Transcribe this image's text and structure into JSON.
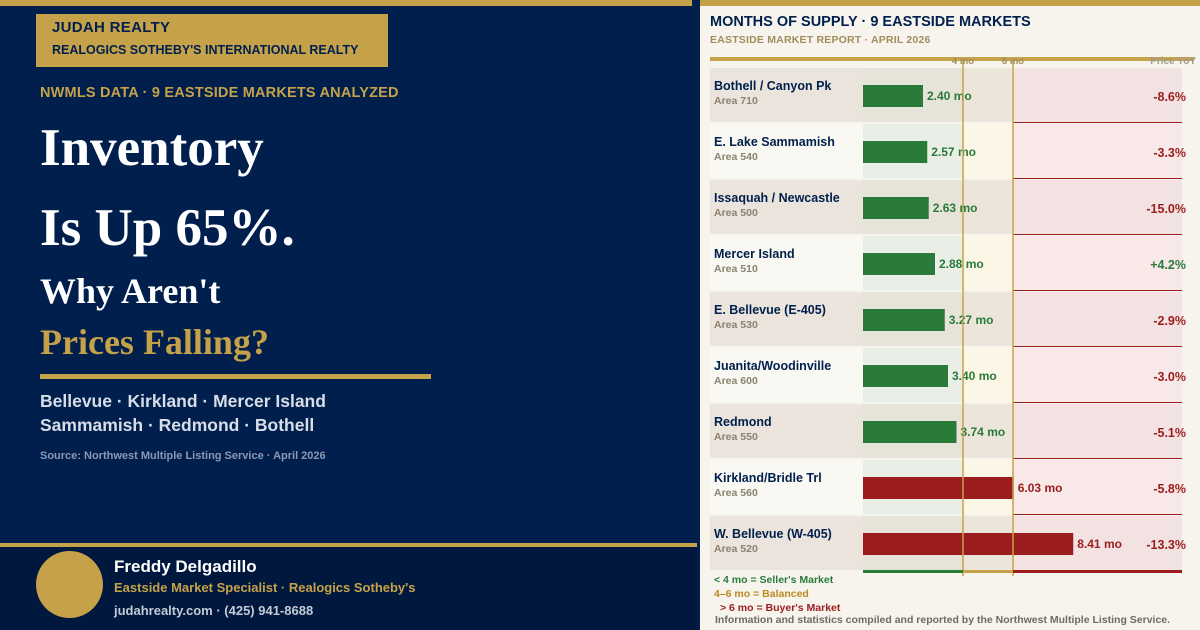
{
  "brand": {
    "name": "JUDAH REALTY",
    "subtitle": "REALOGICS SOTHEBY'S INTERNATIONAL REALTY"
  },
  "headline": {
    "kicker": "NWMLS DATA · 9 EASTSIDE MARKETS ANALYZED",
    "line1": "Inventory",
    "line2": "Is Up 65%.",
    "line3": "Why Aren't",
    "line4": "Prices Falling?"
  },
  "cities": {
    "line1": "Bellevue · Kirkland · Mercer Island",
    "line2": "Sammamish · Redmond · Bothell"
  },
  "source_left": "Source: Northwest Multiple Listing Service · April 2026",
  "agent": {
    "name": "Freddy Delgadillo",
    "title": "Eastside Market Specialist · Realogics Sotheby's",
    "contact": "judahrealty.com · (425) 941-8688"
  },
  "colors": {
    "navy": "#001f4d",
    "gold": "#c5a24a",
    "seller_green": "#2a7a3a",
    "balanced_gold": "#b98a1f",
    "buyer_red": "#9b1c1c"
  },
  "chart_data": {
    "type": "bar",
    "orientation": "horizontal",
    "title": "MONTHS OF SUPPLY · 9 EASTSIDE MARKETS",
    "subtitle": "EASTSIDE MARKET REPORT · APRIL 2026",
    "xlim": [
      0,
      10
    ],
    "thresholds": [
      {
        "value": 4,
        "label": "4 mo"
      },
      {
        "value": 6,
        "label": "6 mo"
      }
    ],
    "yoy_header": "Price YoY",
    "rows": [
      {
        "name": "Bothell / Canyon Pk",
        "area": "Area 710",
        "value": 2.4,
        "value_label": "2.40 mo",
        "yoy": "-8.6%"
      },
      {
        "name": "E. Lake Sammamish",
        "area": "Area 540",
        "value": 2.57,
        "value_label": "2.57 mo",
        "yoy": "-3.3%"
      },
      {
        "name": "Issaquah / Newcastle",
        "area": "Area 500",
        "value": 2.63,
        "value_label": "2.63 mo",
        "yoy": "-15.0%"
      },
      {
        "name": "Mercer Island",
        "area": "Area 510",
        "value": 2.88,
        "value_label": "2.88 mo",
        "yoy": "+4.2%"
      },
      {
        "name": "E. Bellevue (E-405)",
        "area": "Area 530",
        "value": 3.27,
        "value_label": "3.27 mo",
        "yoy": "-2.9%"
      },
      {
        "name": "Juanita/Woodinville",
        "area": "Area 600",
        "value": 3.4,
        "value_label": "3.40 mo",
        "yoy": "-3.0%"
      },
      {
        "name": "Redmond",
        "area": "Area 550",
        "value": 3.74,
        "value_label": "3.74 mo",
        "yoy": "-5.1%"
      },
      {
        "name": "Kirkland/Bridle Trl",
        "area": "Area 560",
        "value": 6.03,
        "value_label": "6.03 mo",
        "yoy": "-5.8%"
      },
      {
        "name": "W. Bellevue (W-405)",
        "area": "Area 520",
        "value": 8.41,
        "value_label": "8.41 mo",
        "yoy": "-13.3%"
      }
    ],
    "legend": {
      "seller": "< 4 mo = Seller's Market",
      "balanced": "4–6 mo = Balanced",
      "buyer": "> 6 mo = Buyer's Market"
    },
    "source": "Information and statistics compiled and reported by the Northwest Multiple Listing Service."
  }
}
